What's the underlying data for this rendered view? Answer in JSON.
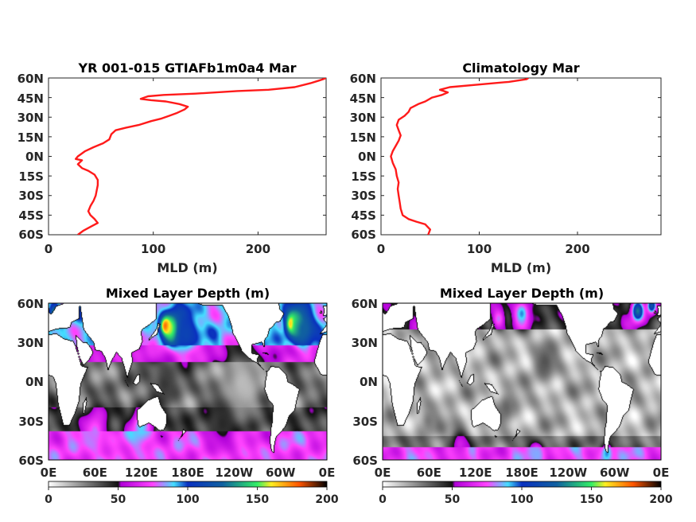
{
  "colors": {
    "profile_line": "#ff1a1a",
    "axis": "#262626",
    "land": "#ffffff",
    "coast": "#000000"
  },
  "colormap": {
    "name": "mld_rainbow",
    "stops": [
      {
        "v": 0,
        "c": "#ffffff"
      },
      {
        "v": 50,
        "c": "#111111"
      },
      {
        "v": 52,
        "c": "#b000d8"
      },
      {
        "v": 75,
        "c": "#ff44ff"
      },
      {
        "v": 90,
        "c": "#44ddff"
      },
      {
        "v": 100,
        "c": "#0a30c0"
      },
      {
        "v": 125,
        "c": "#1060a0"
      },
      {
        "v": 150,
        "c": "#33ee66"
      },
      {
        "v": 160,
        "c": "#ffee22"
      },
      {
        "v": 180,
        "c": "#ff5500"
      },
      {
        "v": 200,
        "c": "#000000"
      }
    ]
  },
  "chart_data": [
    {
      "type": "line",
      "title": "YR 001-015 GTIAFb1m0a4 Mar",
      "xlabel": "MLD (m)",
      "ylabel": "",
      "xlim": [
        0,
        265
      ],
      "ylim": [
        -60,
        60
      ],
      "xticks": [
        0,
        100,
        200
      ],
      "xtick_labels": [
        "0",
        "100",
        "200"
      ],
      "yticks": [
        60,
        45,
        30,
        15,
        0,
        -15,
        -30,
        -45,
        -60
      ],
      "ytick_labels": [
        "60N",
        "45N",
        "30N",
        "15N",
        "0N",
        "15S",
        "30S",
        "45S",
        "60S"
      ],
      "series": [
        {
          "color": "#ff1a1a",
          "points": [
            [
              28,
              -60
            ],
            [
              33,
              -57
            ],
            [
              40,
              -54
            ],
            [
              47,
              -51
            ],
            [
              44,
              -48
            ],
            [
              40,
              -45
            ],
            [
              38,
              -42
            ],
            [
              40,
              -38
            ],
            [
              43,
              -34
            ],
            [
              45,
              -30
            ],
            [
              46,
              -26
            ],
            [
              47,
              -22
            ],
            [
              47,
              -18
            ],
            [
              44,
              -14
            ],
            [
              38,
              -11
            ],
            [
              32,
              -9
            ],
            [
              28,
              -6
            ],
            [
              32,
              -3
            ],
            [
              26,
              -2
            ],
            [
              28,
              0
            ],
            [
              35,
              4
            ],
            [
              43,
              7
            ],
            [
              52,
              10
            ],
            [
              58,
              13
            ],
            [
              60,
              17
            ],
            [
              64,
              20
            ],
            [
              74,
              22
            ],
            [
              86,
              24
            ],
            [
              98,
              27
            ],
            [
              108,
              29
            ],
            [
              115,
              31
            ],
            [
              122,
              33
            ],
            [
              130,
              36
            ],
            [
              133,
              38
            ],
            [
              125,
              40
            ],
            [
              112,
              42
            ],
            [
              98,
              43
            ],
            [
              88,
              44
            ],
            [
              95,
              46
            ],
            [
              110,
              47
            ],
            [
              140,
              48
            ],
            [
              180,
              50
            ],
            [
              210,
              51
            ],
            [
              235,
              53
            ],
            [
              250,
              56
            ],
            [
              258,
              58
            ],
            [
              262,
              59
            ],
            [
              265,
              60
            ]
          ]
        }
      ]
    },
    {
      "type": "line",
      "title": "Climatology Mar",
      "xlabel": "MLD (m)",
      "ylabel": "",
      "xlim": [
        0,
        285
      ],
      "ylim": [
        -60,
        60
      ],
      "xticks": [
        0,
        100,
        200
      ],
      "xtick_labels": [
        "0",
        "100",
        "200"
      ],
      "yticks": [
        60,
        45,
        30,
        15,
        0,
        -15,
        -30,
        -45,
        -60
      ],
      "ytick_labels": [
        "60N",
        "45N",
        "30N",
        "15N",
        "0N",
        "15S",
        "30S",
        "45S",
        "60S"
      ],
      "series": [
        {
          "color": "#ff1a1a",
          "points": [
            [
              48,
              -60
            ],
            [
              50,
              -56
            ],
            [
              45,
              -52
            ],
            [
              36,
              -50
            ],
            [
              28,
              -48
            ],
            [
              22,
              -45
            ],
            [
              20,
              -40
            ],
            [
              19,
              -35
            ],
            [
              18,
              -30
            ],
            [
              17,
              -25
            ],
            [
              18,
              -20
            ],
            [
              16,
              -15
            ],
            [
              15,
              -10
            ],
            [
              12,
              -5
            ],
            [
              10,
              0
            ],
            [
              12,
              4
            ],
            [
              15,
              8
            ],
            [
              18,
              12
            ],
            [
              20,
              16
            ],
            [
              18,
              20
            ],
            [
              16,
              24
            ],
            [
              18,
              28
            ],
            [
              24,
              31
            ],
            [
              28,
              34
            ],
            [
              30,
              37
            ],
            [
              38,
              40
            ],
            [
              45,
              42
            ],
            [
              52,
              45
            ],
            [
              62,
              47
            ],
            [
              68,
              49
            ],
            [
              60,
              51
            ],
            [
              70,
              53
            ],
            [
              100,
              55
            ],
            [
              130,
              57
            ],
            [
              148,
              59
            ],
            [
              150,
              60
            ]
          ]
        }
      ]
    },
    {
      "type": "heatmap",
      "title": "Mixed Layer Depth (m)",
      "xlabel": "",
      "ylabel": "",
      "xlim": [
        0,
        360
      ],
      "ylim": [
        -60,
        60
      ],
      "xtick_labels": [
        "0E",
        "60E",
        "120E",
        "180E",
        "120W",
        "60W",
        "0E"
      ],
      "ytick_labels": [
        "60N",
        "30N",
        "0N",
        "30S",
        "60S"
      ],
      "colorbar": {
        "range": [
          0,
          200
        ],
        "ticks": [
          0,
          50,
          100,
          150,
          200
        ],
        "tick_labels": [
          "0",
          "50",
          "100",
          "150",
          "200"
        ]
      },
      "field": {
        "base": 22,
        "lat_bands": [
          {
            "lat_min": -60,
            "lat_max": -38,
            "value": 72
          },
          {
            "lat_min": -38,
            "lat_max": -20,
            "value": 40
          },
          {
            "lat_min": -20,
            "lat_max": 15,
            "value": 30
          },
          {
            "lat_min": 15,
            "lat_max": 28,
            "value": 60
          },
          {
            "lat_min": 28,
            "lat_max": 60,
            "value": 88
          }
        ],
        "features": [
          {
            "lon": 152,
            "lat": 42,
            "value": 200,
            "r": 7
          },
          {
            "lon": 160,
            "lat": 40,
            "value": 170,
            "r": 12
          },
          {
            "lon": 178,
            "lat": 36,
            "value": 110,
            "r": 16
          },
          {
            "lon": 315,
            "lat": 44,
            "value": 200,
            "r": 7
          },
          {
            "lon": 322,
            "lat": 44,
            "value": 160,
            "r": 12
          },
          {
            "lon": 330,
            "lat": 40,
            "value": 125,
            "r": 14
          },
          {
            "lon": 8,
            "lat": 52,
            "value": 140,
            "r": 7
          },
          {
            "lon": 135,
            "lat": 25,
            "value": 70,
            "r": 12
          },
          {
            "lon": 250,
            "lat": -2,
            "value": 14,
            "r": 25
          },
          {
            "lon": 150,
            "lat": -2,
            "value": 42,
            "r": 16
          },
          {
            "lon": 60,
            "lat": -38,
            "value": 80,
            "r": 15
          },
          {
            "lon": 120,
            "lat": -35,
            "value": 90,
            "r": 14
          },
          {
            "lon": 225,
            "lat": -32,
            "value": 45,
            "r": 18
          }
        ]
      }
    },
    {
      "type": "heatmap",
      "title": "Mixed Layer Depth (m)",
      "xlabel": "",
      "ylabel": "",
      "xlim": [
        0,
        360
      ],
      "ylim": [
        -60,
        60
      ],
      "xtick_labels": [
        "0E",
        "60E",
        "120E",
        "180E",
        "120W",
        "60W",
        "0E"
      ],
      "ytick_labels": [
        "60N",
        "30N",
        "0N",
        "30S",
        "60S"
      ],
      "colorbar": {
        "range": [
          0,
          200
        ],
        "ticks": [
          0,
          50,
          100,
          150,
          200
        ],
        "tick_labels": [
          "0",
          "50",
          "100",
          "150",
          "200"
        ]
      },
      "field": {
        "base": 14,
        "lat_bands": [
          {
            "lat_min": -60,
            "lat_max": -50,
            "value": 72
          },
          {
            "lat_min": -50,
            "lat_max": -42,
            "value": 30
          },
          {
            "lat_min": -42,
            "lat_max": 40,
            "value": 16
          },
          {
            "lat_min": 40,
            "lat_max": 60,
            "value": 45
          }
        ],
        "features": [
          {
            "lon": 180,
            "lat": 52,
            "value": 95,
            "r": 10
          },
          {
            "lon": 150,
            "lat": 48,
            "value": 80,
            "r": 8
          },
          {
            "lon": 330,
            "lat": 54,
            "value": 130,
            "r": 8
          },
          {
            "lon": 348,
            "lat": 58,
            "value": 120,
            "r": 6
          },
          {
            "lon": 290,
            "lat": -55,
            "value": 95,
            "r": 8
          },
          {
            "lon": 200,
            "lat": -56,
            "value": 85,
            "r": 10
          },
          {
            "lon": 100,
            "lat": -48,
            "value": 62,
            "r": 12
          },
          {
            "lon": 210,
            "lat": 15,
            "value": 36,
            "r": 14
          },
          {
            "lon": 160,
            "lat": -20,
            "value": 32,
            "r": 12
          },
          {
            "lon": 60,
            "lat": -30,
            "value": 28,
            "r": 12
          }
        ]
      }
    }
  ]
}
